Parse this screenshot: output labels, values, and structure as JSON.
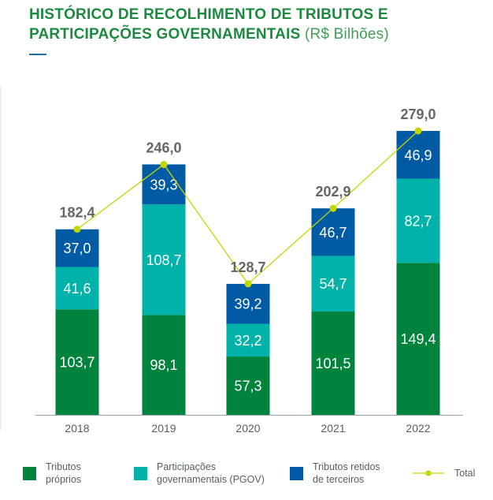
{
  "title": {
    "line1": "HISTÓRICO DE RECOLHIMENTO DE TRIBUTOS E",
    "line2": "PARTICIPAÇÕES GOVERNAMENTAIS",
    "unit": "(R$ Bilhões)"
  },
  "colors": {
    "title": "#1b8a3e",
    "tributos_proprios": "#00843d",
    "participacoes": "#00b2a9",
    "tributos_retidos": "#005ba4",
    "total_line": "#c4d600",
    "axis_text": "#555f66",
    "total_text": "#666666"
  },
  "chart_data": {
    "type": "bar",
    "stacked": true,
    "categories": [
      "2018",
      "2019",
      "2020",
      "2021",
      "2022"
    ],
    "series": [
      {
        "name": "Tributos próprios",
        "values": [
          103.7,
          98.1,
          57.3,
          101.5,
          149.4
        ],
        "labels": [
          "103,7",
          "98,1",
          "57,3",
          "101,5",
          "149,4"
        ]
      },
      {
        "name": "Participações governamentais (PGOV)",
        "values": [
          41.6,
          108.7,
          32.2,
          54.7,
          82.7
        ],
        "labels": [
          "41,6",
          "108,7",
          "32,2",
          "54,7",
          "82,7"
        ]
      },
      {
        "name": "Tributos retidos de terceiros",
        "values": [
          37.0,
          39.3,
          39.2,
          46.7,
          46.9
        ],
        "labels": [
          "37,0",
          "39,3",
          "39,2",
          "46,7",
          "46,9"
        ]
      }
    ],
    "total": {
      "name": "Total",
      "type": "line",
      "values": [
        182.4,
        246.0,
        128.7,
        202.9,
        279.0
      ],
      "labels": [
        "182,4",
        "246,0",
        "128,7",
        "202,9",
        "279,0"
      ]
    },
    "ylim": [
      0,
      279.0
    ],
    "grid": false,
    "legend_position": "bottom"
  },
  "legend": {
    "tributos_proprios": "Tributos\npróprios",
    "participacoes": "Participações\ngovernamentais (PGOV)",
    "tributos_retidos": "Tributos retidos\nde terceiros",
    "total": "Total"
  }
}
